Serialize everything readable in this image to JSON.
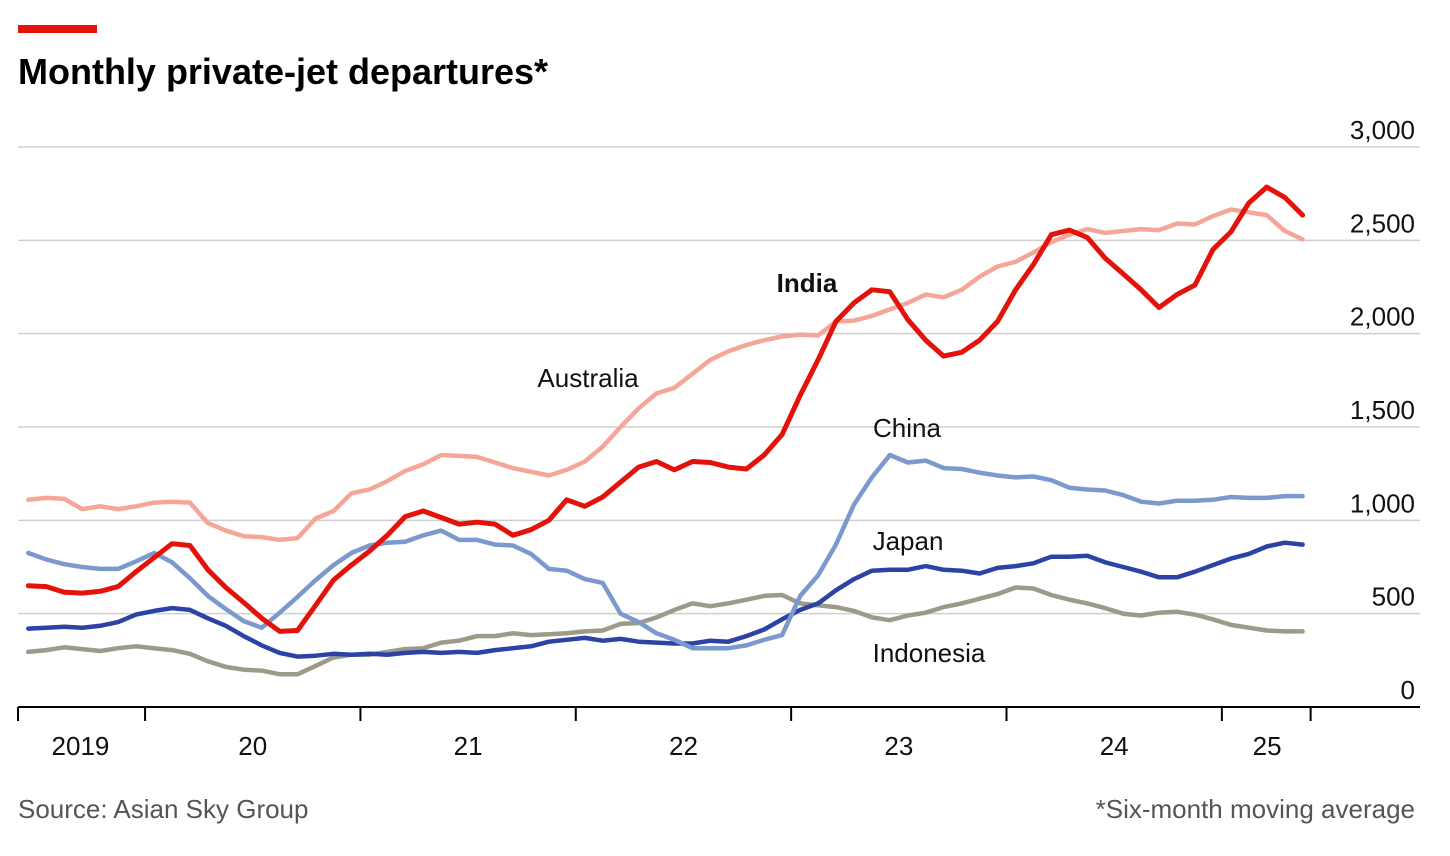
{
  "chart_data": {
    "type": "line",
    "title": "Monthly private-jet departures*",
    "source": "Source: Asian Sky Group",
    "footnote": "*Six-month moving average",
    "x": [
      2019.458,
      2019.542,
      2019.625,
      2019.708,
      2019.792,
      2019.875,
      2019.958,
      2020.042,
      2020.125,
      2020.208,
      2020.292,
      2020.375,
      2020.458,
      2020.542,
      2020.625,
      2020.708,
      2020.792,
      2020.875,
      2020.958,
      2021.042,
      2021.125,
      2021.208,
      2021.292,
      2021.375,
      2021.458,
      2021.542,
      2021.625,
      2021.708,
      2021.792,
      2021.875,
      2021.958,
      2022.042,
      2022.125,
      2022.208,
      2022.292,
      2022.375,
      2022.458,
      2022.542,
      2022.625,
      2022.708,
      2022.792,
      2022.875,
      2022.958,
      2023.042,
      2023.125,
      2023.208,
      2023.292,
      2023.375,
      2023.458,
      2023.542,
      2023.625,
      2023.708,
      2023.792,
      2023.875,
      2023.958,
      2024.042,
      2024.125,
      2024.208,
      2024.292,
      2024.375,
      2024.458,
      2024.542,
      2024.625,
      2024.708,
      2024.792,
      2024.875,
      2024.958,
      2025.042,
      2025.125,
      2025.208,
      2025.292,
      2025.375
    ],
    "series": [
      {
        "name": "Indonesia",
        "color": "#9c9a88",
        "values": [
          295,
          305,
          320,
          310,
          300,
          315,
          325,
          315,
          305,
          285,
          245,
          215,
          200,
          195,
          175,
          175,
          220,
          265,
          280,
          280,
          295,
          310,
          315,
          345,
          355,
          380,
          380,
          395,
          385,
          390,
          395,
          405,
          410,
          445,
          450,
          480,
          520,
          555,
          540,
          555,
          575,
          595,
          600,
          555,
          545,
          535,
          515,
          480,
          465,
          490,
          505,
          535,
          555,
          580,
          605,
          640,
          635,
          600,
          575,
          555,
          530,
          500,
          490,
          505,
          510,
          495,
          470,
          440,
          425,
          410,
          405,
          405
        ]
      },
      {
        "name": "Japan",
        "color": "#2c43a6",
        "values": [
          420,
          425,
          430,
          425,
          435,
          455,
          495,
          515,
          530,
          520,
          475,
          435,
          380,
          330,
          290,
          270,
          275,
          285,
          280,
          285,
          280,
          290,
          295,
          290,
          295,
          290,
          305,
          315,
          325,
          350,
          360,
          370,
          355,
          365,
          350,
          345,
          340,
          340,
          355,
          350,
          380,
          415,
          470,
          520,
          555,
          625,
          685,
          730,
          735,
          735,
          755,
          735,
          730,
          715,
          745,
          755,
          770,
          805,
          805,
          810,
          775,
          750,
          725,
          695,
          695,
          725,
          760,
          795,
          820,
          860,
          880,
          870
        ]
      },
      {
        "name": "China",
        "color": "#7b99cc",
        "values": [
          825,
          790,
          765,
          750,
          740,
          740,
          780,
          825,
          775,
          690,
          595,
          525,
          460,
          425,
          505,
          590,
          680,
          760,
          825,
          865,
          880,
          885,
          920,
          945,
          895,
          895,
          870,
          865,
          820,
          740,
          730,
          685,
          665,
          500,
          455,
          395,
          360,
          315,
          315,
          315,
          330,
          360,
          385,
          595,
          705,
          870,
          1085,
          1230,
          1350,
          1310,
          1320,
          1280,
          1275,
          1255,
          1240,
          1230,
          1235,
          1215,
          1175,
          1165,
          1160,
          1135,
          1100,
          1090,
          1105,
          1105,
          1110,
          1125,
          1120,
          1120,
          1130,
          1130
        ]
      },
      {
        "name": "Australia",
        "color": "#f5a698",
        "values": [
          1110,
          1120,
          1115,
          1060,
          1075,
          1060,
          1075,
          1095,
          1100,
          1095,
          985,
          945,
          915,
          910,
          895,
          905,
          1010,
          1050,
          1145,
          1165,
          1210,
          1265,
          1300,
          1350,
          1345,
          1340,
          1310,
          1280,
          1260,
          1240,
          1270,
          1315,
          1395,
          1500,
          1600,
          1680,
          1710,
          1785,
          1860,
          1905,
          1940,
          1965,
          1985,
          1995,
          1990,
          2065,
          2070,
          2095,
          2130,
          2165,
          2210,
          2195,
          2235,
          2305,
          2360,
          2385,
          2435,
          2490,
          2530,
          2560,
          2540,
          2550,
          2560,
          2555,
          2590,
          2585,
          2630,
          2665,
          2650,
          2635,
          2550,
          2505
        ]
      },
      {
        "name": "India",
        "color": "#e3120b",
        "values": [
          650,
          645,
          615,
          610,
          620,
          645,
          725,
          800,
          875,
          865,
          735,
          640,
          560,
          475,
          405,
          410,
          545,
          680,
          760,
          835,
          920,
          1020,
          1050,
          1015,
          980,
          990,
          980,
          920,
          950,
          1000,
          1110,
          1075,
          1125,
          1205,
          1285,
          1315,
          1270,
          1315,
          1310,
          1285,
          1275,
          1350,
          1460,
          1670,
          1860,
          2065,
          2165,
          2235,
          2225,
          2075,
          1965,
          1880,
          1900,
          1965,
          2065,
          2235,
          2370,
          2530,
          2555,
          2515,
          2405,
          2320,
          2235,
          2140,
          2210,
          2260,
          2450,
          2545,
          2700,
          2785,
          2730,
          2635
        ]
      }
    ],
    "xlim": [
      2019.41,
      2025.92
    ],
    "xticks": [
      2020,
      2021,
      2022,
      2023,
      2024,
      2025
    ],
    "xtick_labels": [
      {
        "value": 2019.7,
        "label": "2019"
      },
      {
        "value": 2020.5,
        "label": "20"
      },
      {
        "value": 2021.5,
        "label": "21"
      },
      {
        "value": 2022.5,
        "label": "22"
      },
      {
        "value": 2023.5,
        "label": "23"
      },
      {
        "value": 2024.5,
        "label": "24"
      },
      {
        "value": 2025.21,
        "label": "25"
      }
    ],
    "ylim": [
      0,
      3000
    ],
    "yticks": [
      0,
      500,
      {
        "value": 1000,
        "label": "1,000"
      },
      {
        "value": 1500,
        "label": "1,500"
      },
      {
        "value": 2000,
        "label": "2,000"
      },
      {
        "value": 2500,
        "label": "2,500"
      },
      {
        "value": 3000,
        "label": "3,000"
      }
    ],
    "grid": true
  }
}
